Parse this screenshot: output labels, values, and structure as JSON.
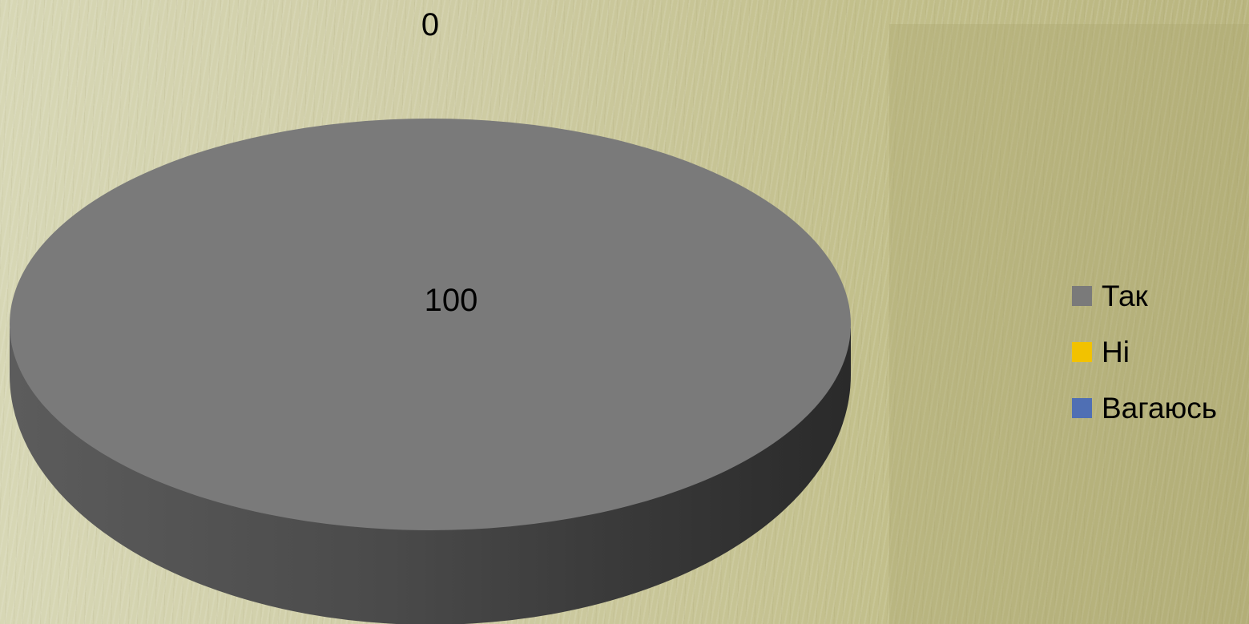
{
  "chart_data": {
    "type": "pie",
    "style": "3d",
    "categories": [
      "Так",
      "Ні",
      "Вагаюсь"
    ],
    "values": [
      100,
      0,
      0
    ],
    "colors": [
      "#7a7a7a",
      "#f2c200",
      "#4f6fb4"
    ],
    "data_labels": [
      "100",
      "0",
      "0"
    ],
    "title": "",
    "legend_placement": "right"
  },
  "legend": {
    "items": [
      {
        "label": "Так",
        "color": "#7a7a7a"
      },
      {
        "label": "Ні",
        "color": "#f2c200"
      },
      {
        "label": "Вагаюсь",
        "color": "#4f6fb4"
      }
    ]
  },
  "labels": {
    "main": "100",
    "zero": "0"
  }
}
